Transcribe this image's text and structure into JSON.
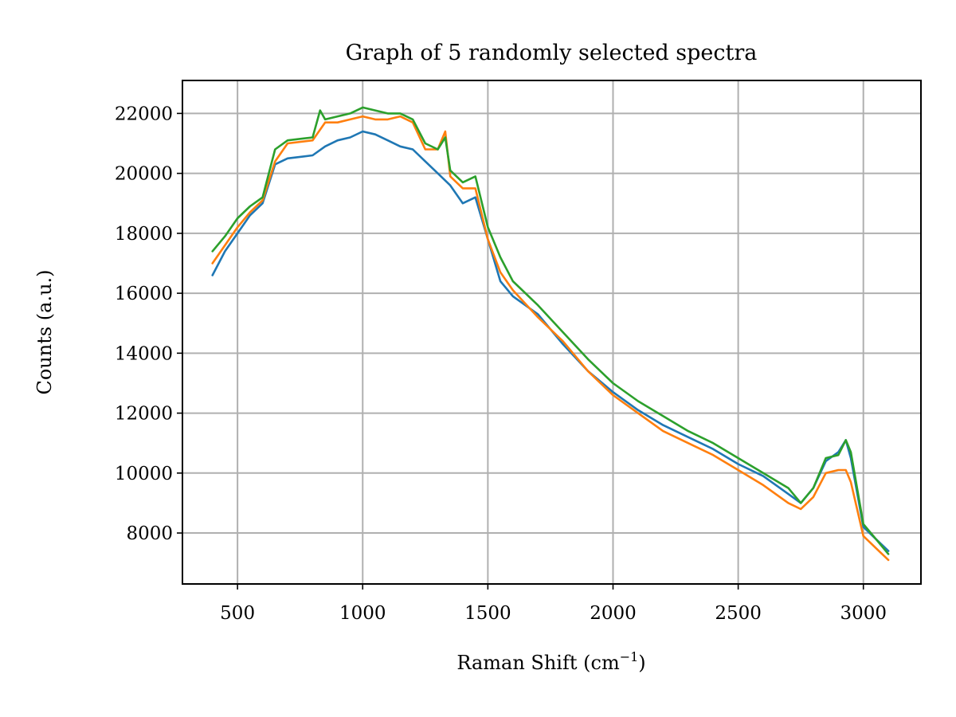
{
  "chart_data": {
    "type": "line",
    "title": "Graph of 5 randomly selected spectra",
    "xlabel": "Raman Shift (cm",
    "xlabel_superscript": "−1",
    "xlabel_suffix": ")",
    "ylabel": "Counts (a.u.)",
    "xlim": [
      280,
      3230
    ],
    "ylim": [
      6300,
      23100
    ],
    "xticks": [
      500,
      1000,
      1500,
      2000,
      2500,
      3000
    ],
    "yticks": [
      8000,
      10000,
      12000,
      14000,
      16000,
      18000,
      20000,
      22000
    ],
    "grid": true,
    "legend": "none",
    "series": [
      {
        "color": "#1f77b4",
        "x": [
          400,
          450,
          500,
          550,
          600,
          650,
          700,
          800,
          850,
          900,
          950,
          1000,
          1050,
          1100,
          1150,
          1200,
          1250,
          1300,
          1350,
          1400,
          1450,
          1500,
          1550,
          1600,
          1700,
          1800,
          1900,
          2000,
          2100,
          2200,
          2300,
          2400,
          2500,
          2600,
          2700,
          2750,
          2800,
          2850,
          2900,
          2930,
          2950,
          3000,
          3050,
          3100
        ],
        "y": [
          16600,
          17400,
          18000,
          18600,
          19000,
          20300,
          20500,
          20600,
          20900,
          21100,
          21200,
          21400,
          21300,
          21100,
          20900,
          20800,
          20400,
          20000,
          19600,
          19000,
          19200,
          17800,
          16400,
          15900,
          15300,
          14300,
          13400,
          12700,
          12100,
          11600,
          11200,
          10800,
          10300,
          9900,
          9300,
          9000,
          9500,
          10400,
          10700,
          11100,
          10500,
          8200,
          7800,
          7400
        ]
      },
      {
        "color": "#ff7f0e",
        "x": [
          400,
          450,
          500,
          550,
          600,
          650,
          700,
          800,
          850,
          900,
          950,
          1000,
          1050,
          1100,
          1150,
          1200,
          1250,
          1300,
          1330,
          1350,
          1400,
          1450,
          1500,
          1550,
          1600,
          1700,
          1800,
          1900,
          2000,
          2100,
          2200,
          2300,
          2400,
          2500,
          2600,
          2700,
          2750,
          2800,
          2850,
          2900,
          2930,
          2950,
          3000,
          3050,
          3100
        ],
        "y": [
          17000,
          17600,
          18200,
          18700,
          19100,
          20400,
          21000,
          21100,
          21700,
          21700,
          21800,
          21900,
          21800,
          21800,
          21900,
          21700,
          20800,
          20800,
          21400,
          19900,
          19500,
          19500,
          17800,
          16700,
          16100,
          15200,
          14400,
          13400,
          12600,
          12000,
          11400,
          11000,
          10600,
          10100,
          9600,
          9000,
          8800,
          9200,
          10000,
          10100,
          10100,
          9700,
          7900,
          7500,
          7100
        ]
      },
      {
        "color": "#2ca02c",
        "x": [
          400,
          450,
          500,
          550,
          600,
          650,
          700,
          800,
          830,
          850,
          900,
          950,
          1000,
          1050,
          1100,
          1150,
          1200,
          1250,
          1300,
          1330,
          1350,
          1400,
          1450,
          1500,
          1550,
          1600,
          1700,
          1800,
          1900,
          2000,
          2100,
          2200,
          2300,
          2400,
          2500,
          2600,
          2700,
          2750,
          2800,
          2850,
          2900,
          2930,
          2950,
          3000,
          3050,
          3100
        ],
        "y": [
          17400,
          17900,
          18500,
          18900,
          19200,
          20800,
          21100,
          21200,
          22100,
          21800,
          21900,
          22000,
          22200,
          22100,
          22000,
          22000,
          21800,
          21000,
          20800,
          21200,
          20100,
          19700,
          19900,
          18200,
          17200,
          16400,
          15600,
          14700,
          13800,
          13000,
          12400,
          11900,
          11400,
          11000,
          10500,
          10000,
          9500,
          9000,
          9500,
          10500,
          10600,
          11100,
          10700,
          8300,
          7800,
          7300
        ]
      }
    ]
  }
}
